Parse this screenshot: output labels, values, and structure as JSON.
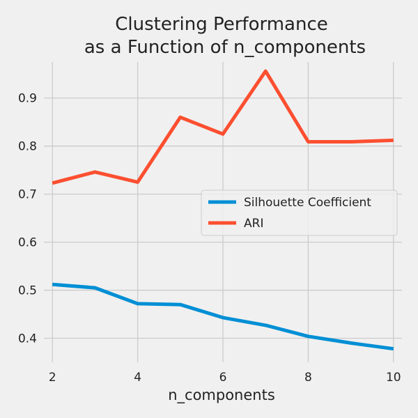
{
  "chart_data": {
    "type": "line",
    "title": [
      "Clustering Performance",
      "as a Function of n_components"
    ],
    "xlabel": "n_components",
    "ylabel": "",
    "x": [
      2,
      3,
      4,
      5,
      6,
      7,
      8,
      9,
      10
    ],
    "xlim": [
      1.8,
      10.2
    ],
    "ylim": [
      0.35,
      0.975
    ],
    "xticks": [
      2,
      4,
      6,
      8,
      10
    ],
    "yticks": [
      0.4,
      0.5,
      0.6,
      0.7,
      0.8,
      0.9
    ],
    "ytick_labels": [
      "0.4",
      "0.5",
      "0.6",
      "0.7",
      "0.8",
      "0.9"
    ],
    "grid": true,
    "legend_position": "center-right",
    "series": [
      {
        "name": "Silhouette Coefficient",
        "color": "#008fd5",
        "values": [
          0.512,
          0.505,
          0.472,
          0.47,
          0.443,
          0.427,
          0.404,
          0.39,
          0.378
        ]
      },
      {
        "name": "ARI",
        "color": "#fc4f30",
        "values": [
          0.723,
          0.746,
          0.725,
          0.86,
          0.825,
          0.956,
          0.809,
          0.809,
          0.812
        ]
      }
    ]
  }
}
